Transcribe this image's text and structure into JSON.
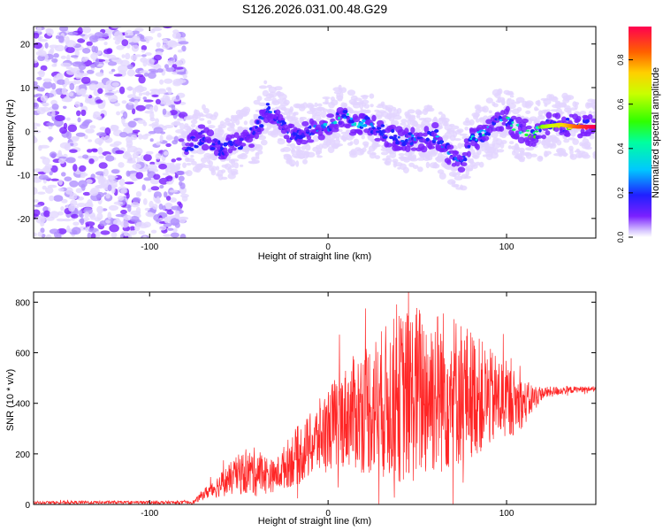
{
  "title": "S126.2026.031.00.48.G29",
  "chart_data": [
    {
      "type": "heatmap",
      "name": "spectrogram",
      "xlabel": "Height of straight line (km)",
      "ylabel": "Frequency (Hz)",
      "xlim": [
        -165,
        150
      ],
      "ylim": [
        -24.5,
        24
      ],
      "x_ticks": [
        -100,
        0,
        100
      ],
      "x_tick_labels": [
        "-100",
        "0",
        "100"
      ],
      "y_ticks": [
        -20,
        -10,
        0,
        10,
        20
      ],
      "y_tick_labels": [
        "-20",
        "-10",
        "0",
        "10",
        "20"
      ],
      "noise_region_x": [
        -165,
        -80
      ],
      "ridge": {
        "x": [
          -80,
          -70,
          -60,
          -50,
          -40,
          -35,
          -30,
          -20,
          -10,
          0,
          5,
          10,
          15,
          20,
          30,
          40,
          50,
          60,
          70,
          75,
          80,
          85,
          90,
          95,
          100,
          105,
          110,
          115,
          120,
          130,
          140,
          148
        ],
        "freq": [
          -4,
          -1,
          -4,
          -3,
          0,
          5,
          4,
          -1,
          0,
          1,
          3,
          4,
          1,
          2,
          0,
          -2,
          -2,
          -1,
          -6,
          -7,
          -2,
          -1,
          0,
          2,
          3,
          1,
          0,
          -1,
          1,
          1.5,
          1,
          1
        ],
        "amplitude": [
          0.12,
          0.15,
          0.18,
          0.15,
          0.2,
          0.25,
          0.22,
          0.2,
          0.2,
          0.3,
          0.35,
          0.3,
          0.4,
          0.25,
          0.25,
          0.2,
          0.25,
          0.3,
          0.25,
          0.2,
          0.3,
          0.35,
          0.4,
          0.35,
          0.4,
          0.45,
          0.4,
          0.5,
          0.6,
          0.7,
          0.85,
          0.95
        ]
      },
      "colorbar": {
        "label": "Normalized spectral amplitude",
        "range": [
          0,
          0.95
        ],
        "ticks": [
          0.0,
          0.2,
          0.4,
          0.6,
          0.8
        ],
        "tick_labels": [
          "0.0",
          "0.2",
          "0.4",
          "0.6",
          "0.8"
        ]
      }
    },
    {
      "type": "line",
      "name": "snr",
      "xlabel": "Height of straight line (km)",
      "ylabel": "SNR (10 * v/v)",
      "xlim": [
        -165,
        150
      ],
      "ylim": [
        0,
        840
      ],
      "x_ticks": [
        -100,
        0,
        100
      ],
      "x_tick_labels": [
        "-100",
        "0",
        "100"
      ],
      "y_ticks": [
        0,
        200,
        400,
        600,
        800
      ],
      "y_tick_labels": [
        "0",
        "200",
        "400",
        "600",
        "800"
      ],
      "series": [
        {
          "name": "SNR",
          "color": "#ff0000",
          "envelope_x": [
            -165,
            -80,
            -75,
            -70,
            -60,
            -50,
            -40,
            -30,
            -20,
            -10,
            0,
            10,
            20,
            30,
            40,
            50,
            60,
            70,
            80,
            90,
            100,
            110,
            120,
            130,
            140,
            150
          ],
          "envelope_mean": [
            8,
            8,
            10,
            40,
            80,
            120,
            130,
            110,
            180,
            230,
            300,
            350,
            380,
            400,
            420,
            440,
            450,
            450,
            440,
            420,
            410,
            400,
            440,
            450,
            455,
            458
          ],
          "envelope_amp": [
            6,
            6,
            8,
            20,
            50,
            80,
            100,
            60,
            110,
            130,
            170,
            200,
            260,
            300,
            340,
            360,
            340,
            320,
            260,
            200,
            160,
            90,
            25,
            18,
            12,
            10
          ]
        }
      ]
    }
  ]
}
